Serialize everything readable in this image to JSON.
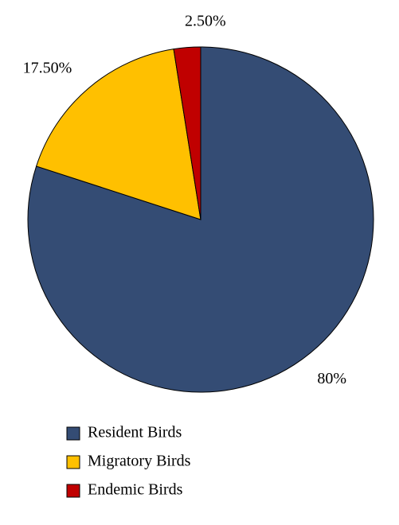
{
  "chart_data": {
    "type": "pie",
    "categories": [
      "Resident Birds",
      "Migratory Birds",
      "Endemic Birds"
    ],
    "values": [
      80,
      17.5,
      2.5
    ],
    "value_labels": [
      "80%",
      "17.50%",
      "2.50%"
    ],
    "colors": [
      "#344c74",
      "#ffc000",
      "#c00000"
    ],
    "legend": "bottom-left"
  }
}
